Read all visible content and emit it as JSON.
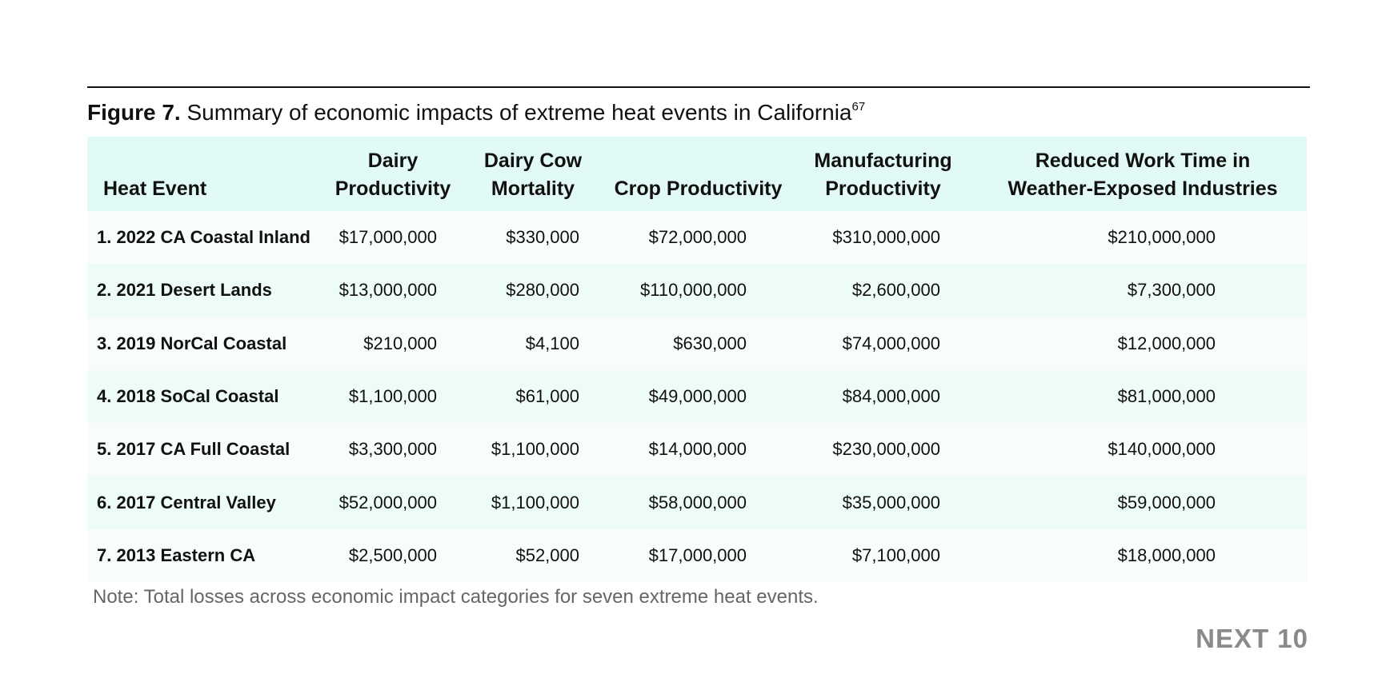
{
  "caption": {
    "label": "Figure 7.",
    "text": "Summary of economic impacts of extreme heat events in California",
    "footnote": "67"
  },
  "table": {
    "columns": [
      {
        "line1": "",
        "line2": "Heat Event"
      },
      {
        "line1": "Dairy",
        "line2": "Productivity"
      },
      {
        "line1": "Dairy Cow",
        "line2": "Mortality"
      },
      {
        "line1": "",
        "line2": "Crop Productivity"
      },
      {
        "line1": "Manufacturing",
        "line2": "Productivity"
      },
      {
        "line1": "Reduced Work Time in",
        "line2": "Weather-Exposed Industries"
      }
    ],
    "rows": [
      [
        "1. 2022 CA Coastal Inland",
        "$17,000,000",
        "$330,000",
        "$72,000,000",
        "$310,000,000",
        "$210,000,000"
      ],
      [
        "2. 2021 Desert Lands",
        "$13,000,000",
        "$280,000",
        "$110,000,000",
        "$2,600,000",
        "$7,300,000"
      ],
      [
        "3. 2019 NorCal Coastal",
        "$210,000",
        "$4,100",
        "$630,000",
        "$74,000,000",
        "$12,000,000"
      ],
      [
        "4. 2018 SoCal Coastal",
        "$1,100,000",
        "$61,000",
        "$49,000,000",
        "$84,000,000",
        "$81,000,000"
      ],
      [
        "5. 2017 CA Full Coastal",
        "$3,300,000",
        "$1,100,000",
        "$14,000,000",
        "$230,000,000",
        "$140,000,000"
      ],
      [
        "6. 2017 Central Valley",
        "$52,000,000",
        "$1,100,000",
        "$58,000,000",
        "$35,000,000",
        "$59,000,000"
      ],
      [
        "7. 2013 Eastern CA",
        "$2,500,000",
        "$52,000",
        "$17,000,000",
        "$7,100,000",
        "$18,000,000"
      ]
    ]
  },
  "note": "Note: Total losses across economic impact categories for seven extreme heat events.",
  "logo": "NEXT 10",
  "colors": {
    "header_bg": "#e2faf5",
    "row_light": "#f8fdfc",
    "row_tint": "#eefcf8",
    "note_text": "#666666",
    "logo_text": "#8a8a8a"
  }
}
